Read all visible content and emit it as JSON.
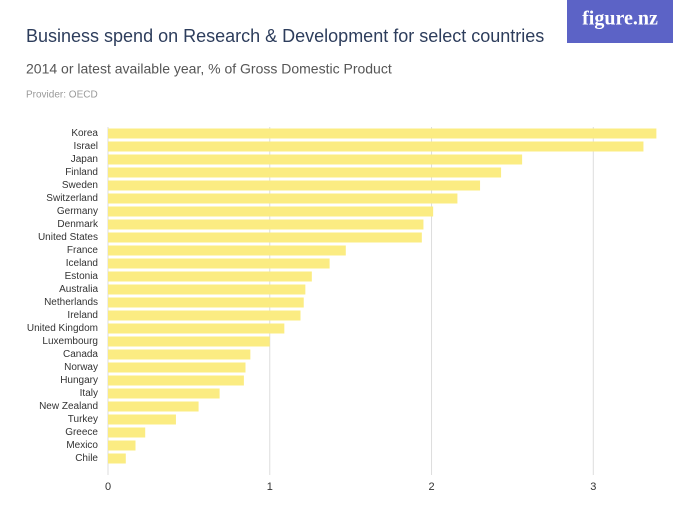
{
  "logo": "figure.nz",
  "chart_data": {
    "type": "hbar",
    "title": "Business spend on Research & Development for select countries",
    "subtitle": "2014 or latest available year, % of Gross Domestic Product",
    "provider": "Provider: OECD",
    "categories": [
      "Korea",
      "Israel",
      "Japan",
      "Finland",
      "Sweden",
      "Switzerland",
      "Germany",
      "Denmark",
      "United States",
      "France",
      "Iceland",
      "Estonia",
      "Australia",
      "Netherlands",
      "Ireland",
      "United Kingdom",
      "Luxembourg",
      "Canada",
      "Norway",
      "Hungary",
      "Italy",
      "New Zealand",
      "Turkey",
      "Greece",
      "Mexico",
      "Chile"
    ],
    "values": [
      3.39,
      3.31,
      2.56,
      2.43,
      2.3,
      2.16,
      2.01,
      1.95,
      1.94,
      1.47,
      1.37,
      1.26,
      1.22,
      1.21,
      1.19,
      1.09,
      1.0,
      0.88,
      0.85,
      0.84,
      0.69,
      0.56,
      0.42,
      0.23,
      0.17,
      0.11
    ],
    "color": "#fbec82",
    "xlim": [
      0,
      3.4
    ],
    "xticks": [
      0,
      1,
      2,
      3
    ],
    "grid": true
  }
}
